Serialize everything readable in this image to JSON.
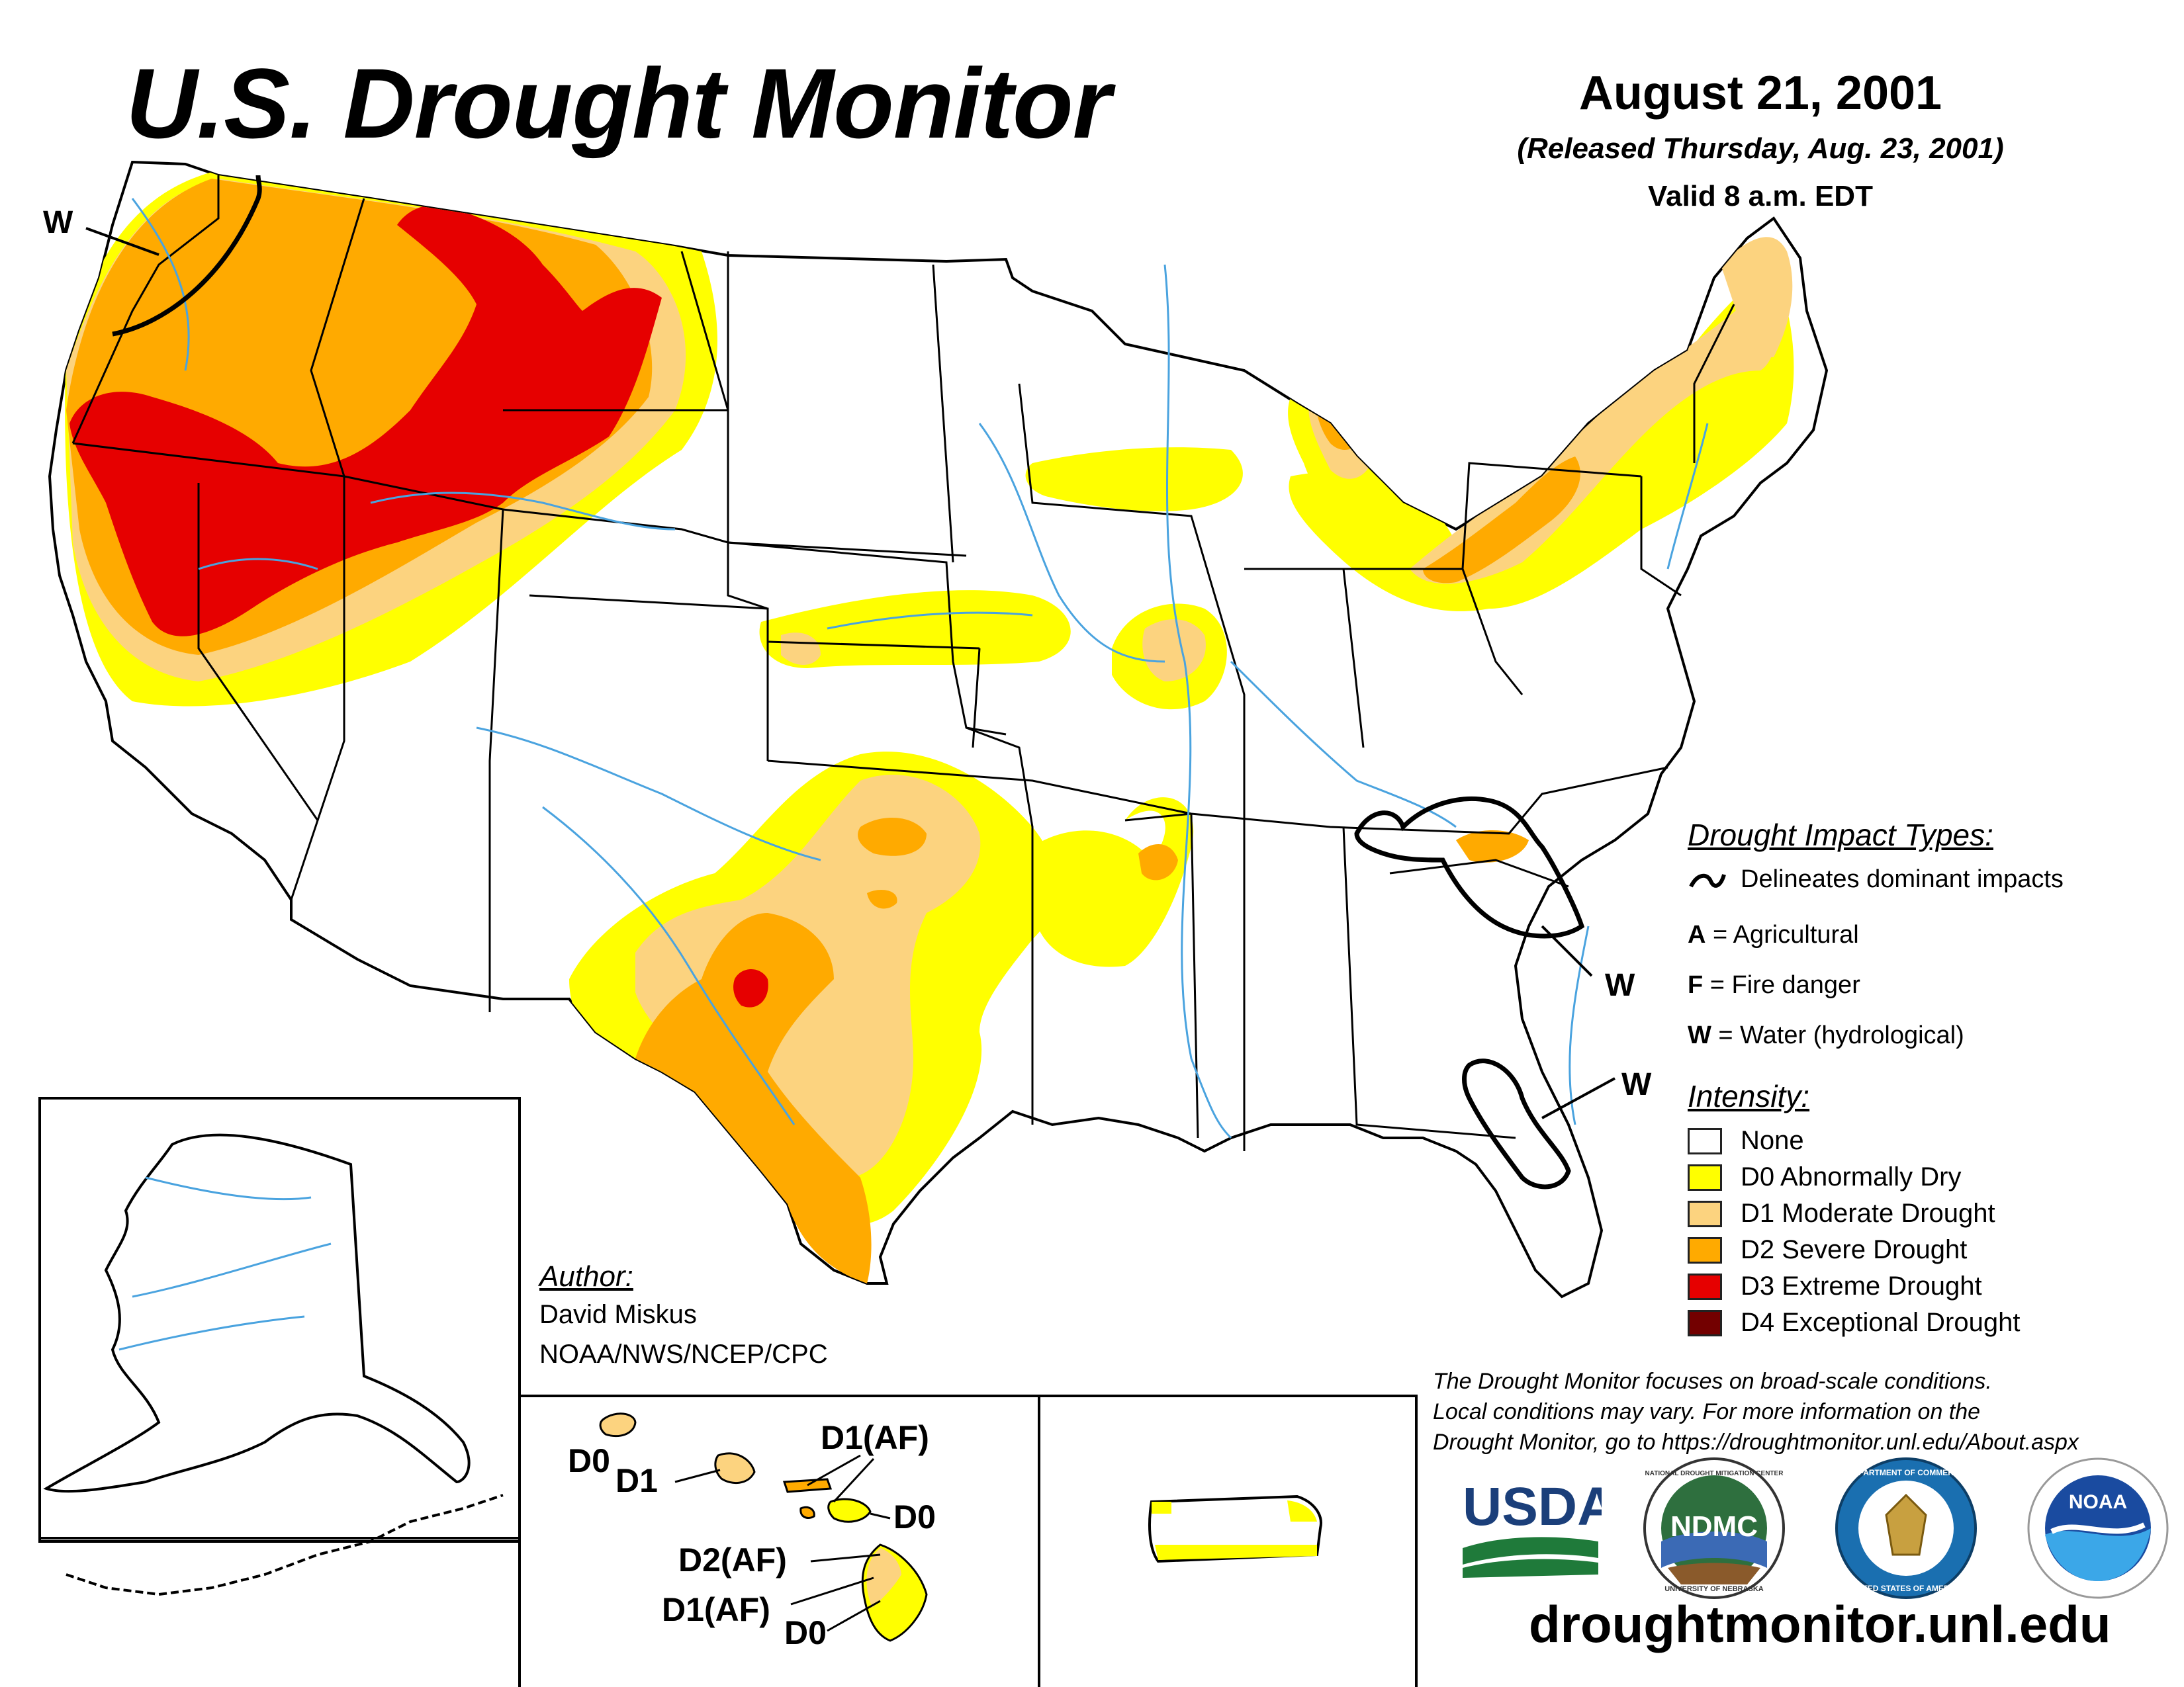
{
  "title": "U.S. Drought Monitor",
  "date": "August 21, 2001",
  "released": "(Released Thursday, Aug. 23, 2001)",
  "valid": "Valid 8 a.m. EDT",
  "impact_types": {
    "heading": "Drought Impact Types:",
    "delineates": "Delineates dominant impacts",
    "items": [
      {
        "code": "A",
        "label": " = Agricultural"
      },
      {
        "code": "F",
        "label": " = Fire danger"
      },
      {
        "code": "W",
        "label": " = Water (hydrological)"
      }
    ]
  },
  "intensity": {
    "heading": "Intensity:",
    "levels": [
      {
        "label": "None",
        "color": "#ffffff"
      },
      {
        "label": "D0 Abnormally Dry",
        "color": "#ffff00"
      },
      {
        "label": "D1 Moderate Drought",
        "color": "#fcd37f"
      },
      {
        "label": "D2 Severe Drought",
        "color": "#ffaa00"
      },
      {
        "label": "D3 Extreme Drought",
        "color": "#e60000"
      },
      {
        "label": "D4 Exceptional Drought",
        "color": "#730000"
      }
    ]
  },
  "author": {
    "heading": "Author:",
    "name": "David Miskus",
    "org": "NOAA/NWS/NCEP/CPC"
  },
  "map_labels": {
    "w_washington": "W",
    "w_carolinas": "W",
    "w_florida": "W"
  },
  "hawaii_labels": {
    "kauai": "D0",
    "oahu": "D1",
    "molokai": "D1(AF)",
    "maui": "D0",
    "lanai": "D2(AF)",
    "big_island_d1": "D1(AF)",
    "big_island_d0": "D0"
  },
  "disclaimer": [
    "The Drought Monitor focuses on broad-scale conditions.",
    "Local conditions may vary. For more information on the",
    "Drought Monitor, go to https://droughtmonitor.unl.edu/About.aspx"
  ],
  "logos": {
    "usda": "USDA",
    "ndmc": "NDMC",
    "ndmc_ring_top": "NATIONAL DROUGHT MITIGATION CENTER",
    "ndmc_ring_bottom": "UNIVERSITY OF NEBRASKA",
    "doc_ring_top": "DEPARTMENT OF COMMERCE",
    "doc_ring_bottom": "UNITED STATES OF AMERICA",
    "noaa": "NOAA"
  },
  "website": "droughtmonitor.unl.edu"
}
